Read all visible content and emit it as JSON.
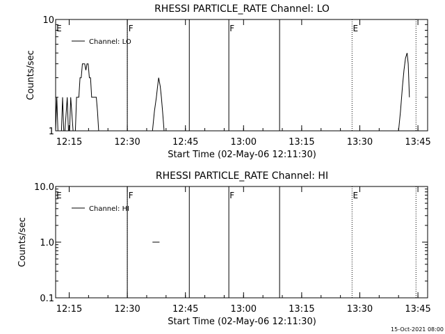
{
  "footer": {
    "timestamp": "15-Oct-2021 08:00"
  },
  "chart_data": [
    {
      "type": "line",
      "title": "RHESSI PARTICLE_RATE Channel: LO",
      "xlabel": "Start Time (02-May-06 12:11:30)",
      "ylabel": "Counts/sec",
      "yscale": "log",
      "ylim": [
        1,
        10
      ],
      "ytick_labels": [
        {
          "value": 1,
          "label": "1"
        },
        {
          "value": 10,
          "label": "10"
        }
      ],
      "xlim_minutes": [
        0,
        96
      ],
      "xtick_labels": [
        "12:15",
        "12:30",
        "12:45",
        "13:00",
        "13:15",
        "13:30",
        "13:45"
      ],
      "xtick_minutes": [
        3.5,
        18.5,
        33.5,
        48.5,
        63.5,
        78.5,
        93.5
      ],
      "legend": "Channel: LO",
      "legend_position": "top-left",
      "series": [
        {
          "name": "Channel: LO",
          "x": [
            0,
            0.3,
            0.6,
            1.5,
            1.8,
            2.1,
            2.4,
            3.0,
            3.3,
            3.6,
            3.9,
            4.5,
            4.8,
            5.1,
            5.4,
            5.7,
            6.0,
            6.3,
            6.6,
            6.9,
            7.2,
            7.5,
            7.8,
            8.1,
            8.4,
            8.7,
            9.0,
            9.3,
            9.6,
            9.9,
            10.2,
            10.5,
            10.8,
            11.1,
            11.4,
            11.7,
            12.0,
            12.3,
            12.6,
            12.9
          ],
          "y": [
            1,
            2,
            1,
            1,
            2,
            1,
            1,
            2,
            1,
            1,
            2,
            1,
            1,
            1,
            2,
            2,
            2,
            3,
            3,
            4,
            4,
            4,
            3.5,
            4,
            4,
            3,
            3,
            2,
            2,
            2,
            2,
            2,
            1.5,
            1,
            1,
            1,
            1,
            1,
            1,
            1
          ],
          "segments": [
            {
              "x": [
                24.5,
                25.0,
                25.5,
                26.0,
                26.3,
                26.6,
                27.0,
                27.3,
                27.6,
                28.0,
                28.3
              ],
              "y": [
                1,
                1,
                1.5,
                2,
                2.5,
                3,
                2.5,
                2,
                1.5,
                1,
                1
              ]
            },
            {
              "x": [
                88.5,
                89.0,
                89.5,
                89.9,
                90.3,
                90.7,
                91.0,
                91.3
              ],
              "y": [
                1,
                1.5,
                2.5,
                3.5,
                4.5,
                5,
                4,
                2
              ]
            }
          ]
        }
      ],
      "solid_vlines_minutes": [
        18.5,
        34.5,
        44.7,
        57.8
      ],
      "dotted_vlines_minutes": [
        18.5,
        76.5,
        93.0
      ],
      "event_markers": [
        {
          "label": "E",
          "minute": 0.2
        },
        {
          "label": "F",
          "minute": 18.8
        },
        {
          "label": "F",
          "minute": 44.9
        },
        {
          "label": "E",
          "minute": 76.7
        }
      ]
    },
    {
      "type": "line",
      "title": "RHESSI PARTICLE_RATE Channel: HI",
      "xlabel": "Start Time (02-May-06 12:11:30)",
      "ylabel": "Counts/sec",
      "yscale": "log",
      "ylim": [
        0.1,
        10
      ],
      "ytick_labels": [
        {
          "value": 0.1,
          "label": "0.1"
        },
        {
          "value": 1,
          "label": "1.0"
        },
        {
          "value": 10,
          "label": "10.0"
        }
      ],
      "xlim_minutes": [
        0,
        96
      ],
      "xtick_labels": [
        "12:15",
        "12:30",
        "12:45",
        "13:00",
        "13:15",
        "13:30",
        "13:45"
      ],
      "xtick_minutes": [
        3.5,
        18.5,
        33.5,
        48.5,
        63.5,
        78.5,
        93.5
      ],
      "legend": "Channel: HI",
      "legend_position": "top-left",
      "series": [
        {
          "name": "Channel: HI",
          "x": [
            25.0,
            26.8
          ],
          "y": [
            1,
            1
          ]
        }
      ],
      "solid_vlines_minutes": [
        18.5,
        34.5,
        44.7,
        57.8
      ],
      "dotted_vlines_minutes": [
        18.5,
        76.5,
        93.0
      ],
      "event_markers": [
        {
          "label": "E",
          "minute": 0.2
        },
        {
          "label": "F",
          "minute": 18.8
        },
        {
          "label": "F",
          "minute": 44.9
        },
        {
          "label": "E",
          "minute": 76.7
        }
      ]
    }
  ]
}
